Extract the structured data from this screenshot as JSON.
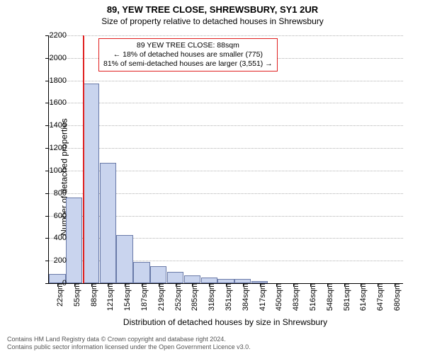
{
  "title": "89, YEW TREE CLOSE, SHREWSBURY, SY1 2UR",
  "subtitle": "Size of property relative to detached houses in Shrewsbury",
  "ylabel": "Number of detached properties",
  "xlabel": "Distribution of detached houses by size in Shrewsbury",
  "chart": {
    "type": "bar",
    "ylim": [
      0,
      2200
    ],
    "yticks": [
      0,
      200,
      400,
      600,
      800,
      1000,
      1200,
      1400,
      1600,
      1800,
      2000,
      2200
    ],
    "x_tick_labels": [
      "22sqm",
      "55sqm",
      "88sqm",
      "121sqm",
      "154sqm",
      "187sqm",
      "219sqm",
      "252sqm",
      "285sqm",
      "318sqm",
      "351sqm",
      "384sqm",
      "417sqm",
      "450sqm",
      "483sqm",
      "516sqm",
      "548sqm",
      "581sqm",
      "614sqm",
      "647sqm",
      "680sqm"
    ],
    "bar_step_sqm": 33,
    "n_bins": 21,
    "bar_values": [
      80,
      760,
      1770,
      1070,
      430,
      190,
      150,
      100,
      70,
      50,
      40,
      40,
      20,
      0,
      0,
      0,
      0,
      0,
      0,
      0,
      0
    ],
    "bar_color": "#c9d4ee",
    "bar_border_color": "#6a7aa8",
    "highlight_index": 2,
    "highlight_color": "#e02020",
    "grid_color": "#b0b0b0",
    "background_color": "#ffffff",
    "font_size_axis": 11,
    "font_size_label": 12,
    "font_size_title": 13
  },
  "annotation": {
    "line1": "89 YEW TREE CLOSE: 88sqm",
    "line2": "← 18% of detached houses are smaller (775)",
    "line3": "81% of semi-detached houses are larger (3,551) →"
  },
  "footnote": {
    "line1": "Contains HM Land Registry data © Crown copyright and database right 2024.",
    "line2": "Contains public sector information licensed under the Open Government Licence v3.0."
  }
}
